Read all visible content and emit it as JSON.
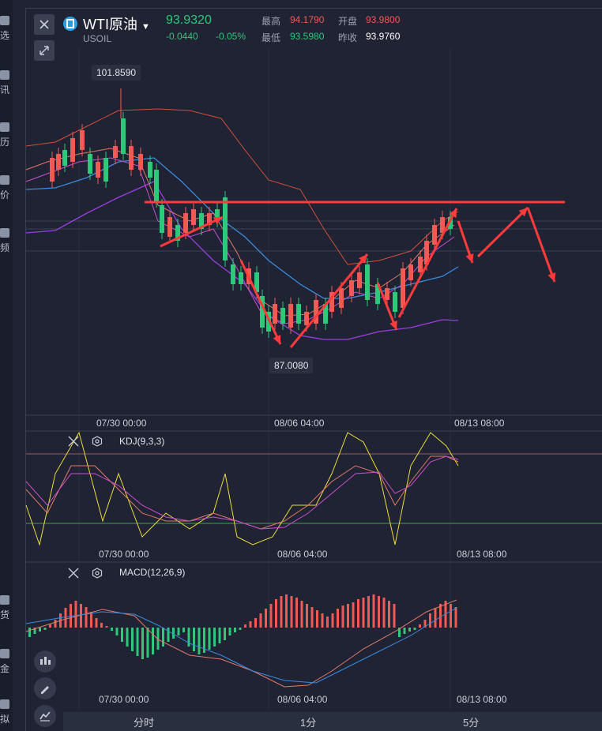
{
  "sidebar": {
    "items": [
      {
        "label": "选",
        "icon": "flag-icon"
      },
      {
        "label": "讯",
        "icon": "news-icon"
      },
      {
        "label": "历",
        "icon": "calendar-icon"
      },
      {
        "label": "价",
        "icon": "price-icon"
      },
      {
        "label": "频",
        "icon": "video-icon"
      },
      {
        "label": "货",
        "icon": "futures-icon"
      },
      {
        "label": "金",
        "icon": "gold-icon"
      },
      {
        "label": "拟",
        "icon": "simulate-icon"
      }
    ]
  },
  "header": {
    "title": "WTI原油",
    "symbol": "USOIL",
    "price": "93.9320",
    "change": "-0.0440",
    "change_pct": "-0.05%",
    "high_label": "最高",
    "high": "94.1790",
    "open_label": "开盘",
    "open": "93.9800",
    "low_label": "最低",
    "low": "93.5980",
    "prev_close_label": "昨收",
    "prev_close": "93.9760"
  },
  "main_chart": {
    "max_tag": "101.8590",
    "min_tag": "87.0080",
    "x_labels": [
      "07/30 00:00",
      "08/06 04:00",
      "08/13 08:00"
    ]
  },
  "kdj": {
    "label": "KDJ(9,3,3)",
    "x_labels": [
      "07/30 00:00",
      "08/06 04:00",
      "08/13 08:00"
    ]
  },
  "macd": {
    "label": "MACD(12,26,9)",
    "x_labels": [
      "07/30 00:00",
      "08/06 04:00",
      "08/13 08:00"
    ]
  },
  "tabs": [
    "分时",
    "1分",
    "5分"
  ],
  "colors": {
    "up": "#f05a55",
    "down": "#2dc87a",
    "accent": "#ff3b3b"
  }
}
